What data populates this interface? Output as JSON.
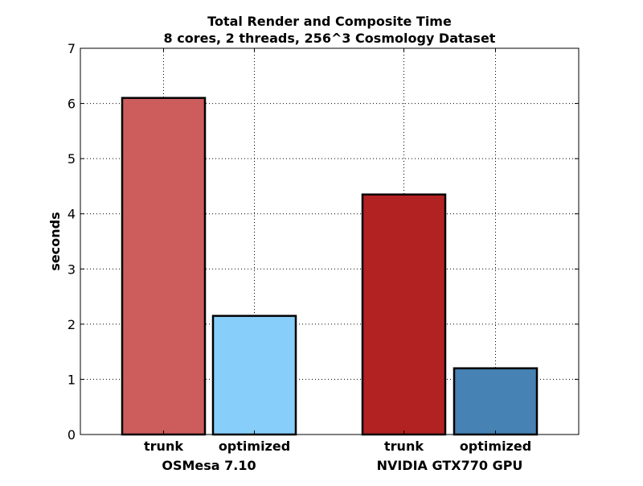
{
  "chart_data": {
    "type": "bar",
    "title": "Total Render and Composite Time",
    "subtitle": "8 cores, 2 threads, 256^3 Cosmology Dataset",
    "xlabel": "",
    "ylabel": "seconds",
    "ylim": [
      0,
      7
    ],
    "yticks": [
      "0",
      "1",
      "2",
      "3",
      "4",
      "5",
      "6",
      "7"
    ],
    "grid": true,
    "legend": "none",
    "groups": [
      {
        "label": "OSMesa 7.10",
        "bars": [
          {
            "label": "trunk",
            "value": 6.1,
            "color": "#cd5c5c"
          },
          {
            "label": "optimized",
            "value": 2.15,
            "color": "#87cefa"
          }
        ]
      },
      {
        "label": "NVIDIA GTX770 GPU",
        "bars": [
          {
            "label": "trunk",
            "value": 4.35,
            "color": "#b22222"
          },
          {
            "label": "optimized",
            "value": 1.2,
            "color": "#4682b4"
          }
        ]
      }
    ]
  }
}
